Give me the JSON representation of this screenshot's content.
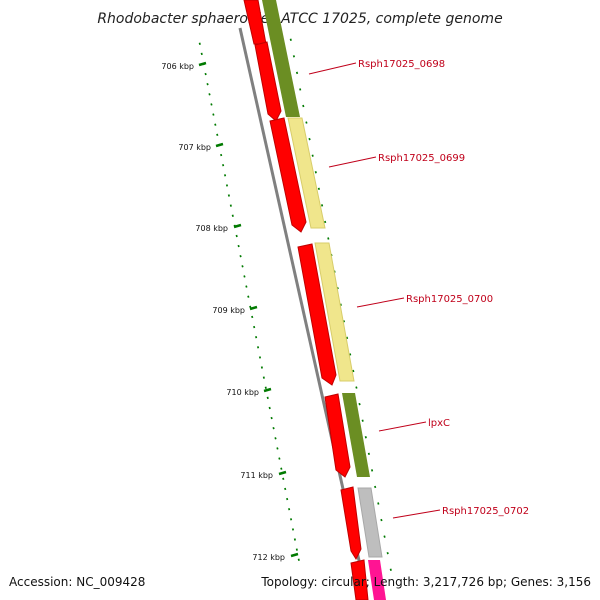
{
  "title": "Rhodobacter sphaeroides ATCC 17025, complete genome",
  "ticks": [
    {
      "label": "706 kbp"
    },
    {
      "label": "707 kbp"
    },
    {
      "label": "708 kbp"
    },
    {
      "label": "709 kbp"
    },
    {
      "label": "710 kbp"
    },
    {
      "label": "711 kbp"
    },
    {
      "label": "712 kbp"
    }
  ],
  "genes": [
    {
      "label": "Rsph17025_0698",
      "color": "#6b8e23"
    },
    {
      "label": "Rsph17025_0699",
      "color": "#f0e68c"
    },
    {
      "label": "Rsph17025_0700",
      "color": "#f0e68c"
    },
    {
      "label": "lpxC",
      "color": "#6b8e23"
    },
    {
      "label": "Rsph17025_0702",
      "color": "#bebebe"
    }
  ],
  "colors": {
    "cds": "#ff0000",
    "tick": "#007a00",
    "backbone": "#808080",
    "label": "#c0001a",
    "magenta": "#ff1493"
  },
  "footer": {
    "accession": "Accession: NC_009428",
    "topology": "Topology: circular; Length: 3,217,726 bp; Genes: 3,156"
  }
}
